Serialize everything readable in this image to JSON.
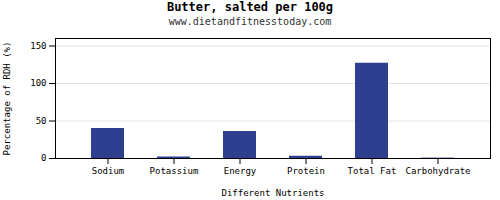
{
  "chart_data": {
    "type": "bar",
    "title": "Butter, salted per 100g",
    "subtitle": "www.dietandfitnesstoday.com",
    "xlabel": "Different Nutrients",
    "ylabel": "Percentage of RDH (%)",
    "categories": [
      "Sodium",
      "Potassium",
      "Energy",
      "Protein",
      "Total Fat",
      "Carbohydrate"
    ],
    "values": [
      40,
      2,
      36,
      3,
      127,
      0.5
    ],
    "color": "#2e3f8f",
    "ylim": [
      0,
      160
    ],
    "yticks": [
      0,
      50,
      100,
      150
    ],
    "grid": true
  }
}
